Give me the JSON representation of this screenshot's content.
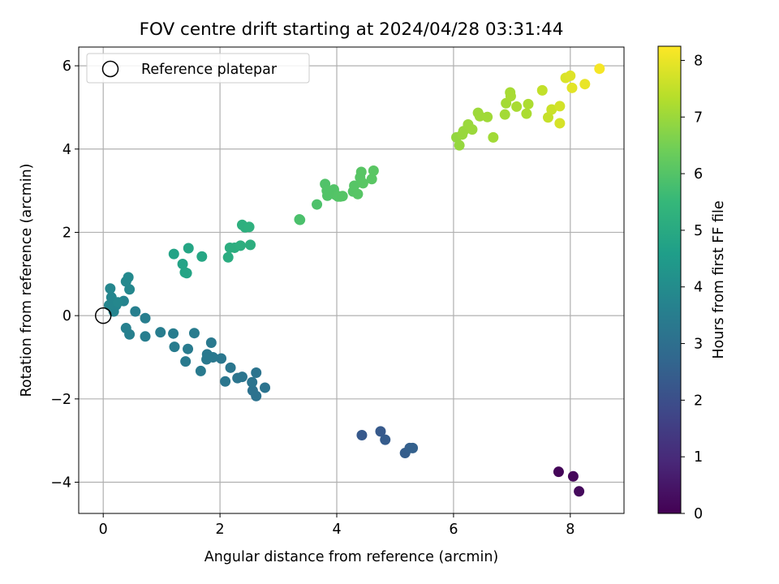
{
  "chart_data": {
    "type": "scatter",
    "title": "FOV centre drift starting at 2024/04/28 03:31:44",
    "xlabel": "Angular distance from reference (arcmin)",
    "ylabel": "Rotation from reference (arcmin)",
    "xlim": [
      -0.42,
      8.92
    ],
    "ylim": [
      -4.75,
      6.45
    ],
    "xticks": [
      0,
      2,
      4,
      6,
      8
    ],
    "yticks": [
      -4,
      -2,
      0,
      2,
      4,
      6
    ],
    "grid": true,
    "legend": {
      "placement": "top-left",
      "entries": [
        "Reference platepar"
      ]
    },
    "reference_point": {
      "x": 0,
      "y": 0,
      "marker": "hollow-circle",
      "color": "#000000"
    },
    "colorbar": {
      "label": "Hours from first FF file",
      "range": [
        0,
        8.25
      ],
      "ticks": [
        0,
        1,
        2,
        3,
        4,
        5,
        6,
        7,
        8
      ],
      "colormap": "viridis",
      "stops": [
        "#440154",
        "#482878",
        "#3e4989",
        "#31688e",
        "#26828e",
        "#1f9e89",
        "#35b779",
        "#6ece58",
        "#b5de2b",
        "#fde725"
      ]
    },
    "points": [
      {
        "x": 7.8,
        "y": -3.75,
        "t": 0.1
      },
      {
        "x": 8.05,
        "y": -3.86,
        "t": 0.15
      },
      {
        "x": 8.15,
        "y": -4.22,
        "t": 0.2
      },
      {
        "x": 4.43,
        "y": -2.87,
        "t": 2.3
      },
      {
        "x": 4.75,
        "y": -2.78,
        "t": 2.35
      },
      {
        "x": 4.83,
        "y": -2.98,
        "t": 2.4
      },
      {
        "x": 5.17,
        "y": -3.3,
        "t": 2.45
      },
      {
        "x": 5.25,
        "y": -3.18,
        "t": 2.5
      },
      {
        "x": 5.3,
        "y": -3.18,
        "t": 2.55
      },
      {
        "x": 2.62,
        "y": -1.93,
        "t": 3.1
      },
      {
        "x": 2.56,
        "y": -1.8,
        "t": 3.12
      },
      {
        "x": 2.77,
        "y": -1.73,
        "t": 3.14
      },
      {
        "x": 2.55,
        "y": -1.6,
        "t": 3.16
      },
      {
        "x": 2.62,
        "y": -1.37,
        "t": 3.18
      },
      {
        "x": 2.3,
        "y": -1.5,
        "t": 3.2
      },
      {
        "x": 2.38,
        "y": -1.47,
        "t": 3.22
      },
      {
        "x": 2.09,
        "y": -1.58,
        "t": 3.24
      },
      {
        "x": 2.18,
        "y": -1.25,
        "t": 3.26
      },
      {
        "x": 2.02,
        "y": -1.03,
        "t": 3.28
      },
      {
        "x": 1.88,
        "y": -1.0,
        "t": 3.3
      },
      {
        "x": 1.78,
        "y": -0.93,
        "t": 3.32
      },
      {
        "x": 1.77,
        "y": -1.05,
        "t": 3.34
      },
      {
        "x": 1.85,
        "y": -0.65,
        "t": 3.36
      },
      {
        "x": 1.67,
        "y": -1.33,
        "t": 3.38
      },
      {
        "x": 1.41,
        "y": -1.1,
        "t": 3.4
      },
      {
        "x": 1.45,
        "y": -0.8,
        "t": 3.42
      },
      {
        "x": 1.56,
        "y": -0.42,
        "t": 3.44
      },
      {
        "x": 1.22,
        "y": -0.75,
        "t": 3.46
      },
      {
        "x": 1.2,
        "y": -0.43,
        "t": 3.48
      },
      {
        "x": 0.98,
        "y": -0.4,
        "t": 3.5
      },
      {
        "x": 0.72,
        "y": -0.5,
        "t": 3.52
      },
      {
        "x": 0.72,
        "y": -0.06,
        "t": 3.54
      },
      {
        "x": 0.55,
        "y": 0.1,
        "t": 3.56
      },
      {
        "x": 0.45,
        "y": -0.45,
        "t": 3.58
      },
      {
        "x": 0.39,
        "y": -0.3,
        "t": 3.6
      },
      {
        "x": 0.35,
        "y": 0.35,
        "t": 3.7
      },
      {
        "x": 0.18,
        "y": 0.1,
        "t": 3.72
      },
      {
        "x": 0.22,
        "y": 0.25,
        "t": 3.74
      },
      {
        "x": 0.1,
        "y": 0.25,
        "t": 3.76
      },
      {
        "x": 0.14,
        "y": 0.44,
        "t": 3.78
      },
      {
        "x": 0.12,
        "y": 0.65,
        "t": 3.8
      },
      {
        "x": 0.25,
        "y": 0.32,
        "t": 3.82
      },
      {
        "x": 0.45,
        "y": 0.63,
        "t": 3.84
      },
      {
        "x": 0.39,
        "y": 0.82,
        "t": 3.86
      },
      {
        "x": 0.43,
        "y": 0.92,
        "t": 3.88
      },
      {
        "x": 1.21,
        "y": 1.48,
        "t": 4.75
      },
      {
        "x": 1.36,
        "y": 1.24,
        "t": 4.78
      },
      {
        "x": 1.4,
        "y": 1.04,
        "t": 4.8
      },
      {
        "x": 1.43,
        "y": 1.02,
        "t": 4.82
      },
      {
        "x": 1.46,
        "y": 1.62,
        "t": 4.85
      },
      {
        "x": 1.69,
        "y": 1.42,
        "t": 4.88
      },
      {
        "x": 2.14,
        "y": 1.4,
        "t": 5.1
      },
      {
        "x": 2.17,
        "y": 1.63,
        "t": 5.12
      },
      {
        "x": 2.25,
        "y": 1.63,
        "t": 5.14
      },
      {
        "x": 2.35,
        "y": 1.68,
        "t": 5.16
      },
      {
        "x": 2.52,
        "y": 1.7,
        "t": 5.18
      },
      {
        "x": 2.38,
        "y": 2.18,
        "t": 5.2
      },
      {
        "x": 2.43,
        "y": 2.12,
        "t": 5.22
      },
      {
        "x": 2.5,
        "y": 2.13,
        "t": 5.24
      },
      {
        "x": 3.36,
        "y": 2.31,
        "t": 5.85
      },
      {
        "x": 3.37,
        "y": 2.3,
        "t": 5.86
      },
      {
        "x": 3.66,
        "y": 2.67,
        "t": 5.9
      },
      {
        "x": 3.8,
        "y": 3.16,
        "t": 5.95
      },
      {
        "x": 3.83,
        "y": 3.0,
        "t": 5.96
      },
      {
        "x": 3.84,
        "y": 2.88,
        "t": 5.97
      },
      {
        "x": 3.95,
        "y": 3.03,
        "t": 5.98
      },
      {
        "x": 3.98,
        "y": 2.9,
        "t": 5.99
      },
      {
        "x": 4.02,
        "y": 2.86,
        "t": 6.0
      },
      {
        "x": 4.06,
        "y": 2.86,
        "t": 6.01
      },
      {
        "x": 4.1,
        "y": 2.87,
        "t": 6.02
      },
      {
        "x": 4.28,
        "y": 2.98,
        "t": 6.03
      },
      {
        "x": 4.3,
        "y": 3.12,
        "t": 6.04
      },
      {
        "x": 4.36,
        "y": 2.92,
        "t": 6.05
      },
      {
        "x": 4.4,
        "y": 3.32,
        "t": 6.06
      },
      {
        "x": 4.42,
        "y": 3.45,
        "t": 6.07
      },
      {
        "x": 4.45,
        "y": 3.18,
        "t": 6.08
      },
      {
        "x": 4.6,
        "y": 3.28,
        "t": 6.09
      },
      {
        "x": 4.63,
        "y": 3.48,
        "t": 6.1
      },
      {
        "x": 6.05,
        "y": 4.28,
        "t": 6.9
      },
      {
        "x": 6.1,
        "y": 4.09,
        "t": 6.92
      },
      {
        "x": 6.15,
        "y": 4.35,
        "t": 6.94
      },
      {
        "x": 6.17,
        "y": 4.43,
        "t": 6.96
      },
      {
        "x": 6.25,
        "y": 4.59,
        "t": 6.98
      },
      {
        "x": 6.32,
        "y": 4.47,
        "t": 7.0
      },
      {
        "x": 6.42,
        "y": 4.87,
        "t": 7.02
      },
      {
        "x": 6.45,
        "y": 4.79,
        "t": 7.04
      },
      {
        "x": 6.58,
        "y": 4.77,
        "t": 7.06
      },
      {
        "x": 6.68,
        "y": 4.28,
        "t": 7.08
      },
      {
        "x": 6.88,
        "y": 4.83,
        "t": 7.1
      },
      {
        "x": 6.9,
        "y": 5.1,
        "t": 7.12
      },
      {
        "x": 6.97,
        "y": 5.36,
        "t": 7.14
      },
      {
        "x": 6.98,
        "y": 5.27,
        "t": 7.16
      },
      {
        "x": 7.08,
        "y": 5.02,
        "t": 7.18
      },
      {
        "x": 7.25,
        "y": 4.85,
        "t": 7.2
      },
      {
        "x": 7.28,
        "y": 5.08,
        "t": 7.22
      },
      {
        "x": 7.52,
        "y": 5.41,
        "t": 7.5
      },
      {
        "x": 7.62,
        "y": 4.76,
        "t": 7.55
      },
      {
        "x": 7.68,
        "y": 4.95,
        "t": 7.6
      },
      {
        "x": 7.82,
        "y": 5.03,
        "t": 7.7
      },
      {
        "x": 7.82,
        "y": 4.62,
        "t": 7.75
      },
      {
        "x": 7.92,
        "y": 5.71,
        "t": 7.8
      },
      {
        "x": 8.0,
        "y": 5.76,
        "t": 7.85
      },
      {
        "x": 8.03,
        "y": 5.47,
        "t": 7.9
      },
      {
        "x": 8.25,
        "y": 5.56,
        "t": 8.0
      },
      {
        "x": 8.5,
        "y": 5.93,
        "t": 8.15
      }
    ]
  }
}
